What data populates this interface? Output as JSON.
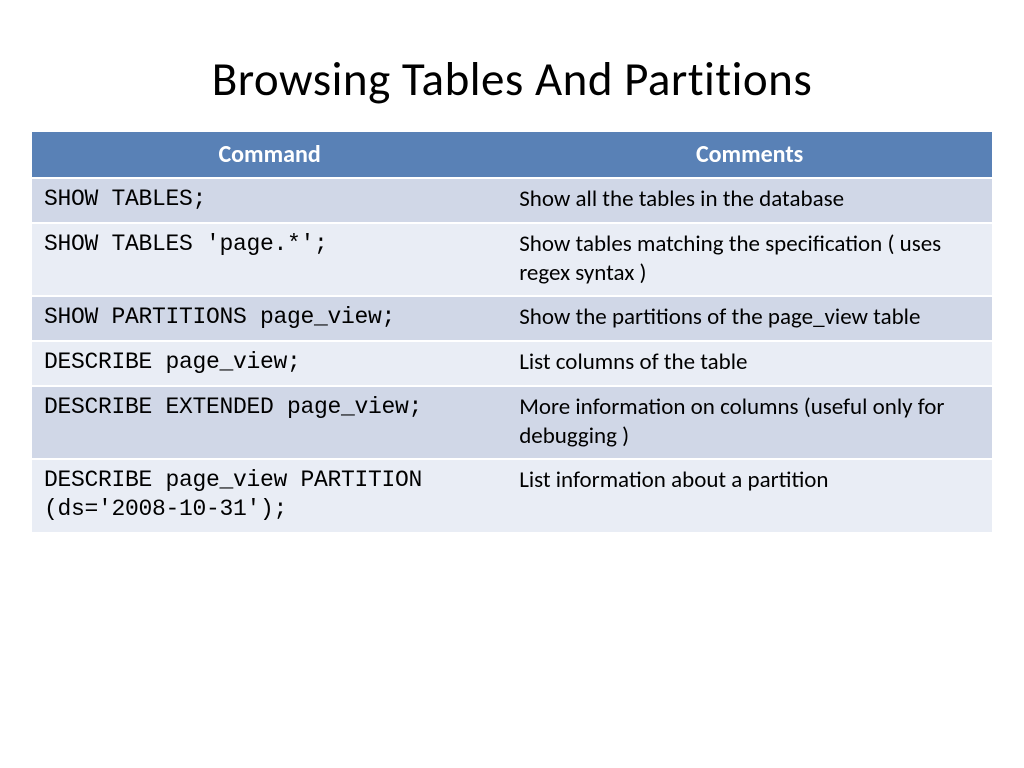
{
  "slide": {
    "title": "Browsing Tables And Partitions",
    "table": {
      "type": "table",
      "header_bg": "#5981b6",
      "header_text_color": "#ffffff",
      "row_colors": [
        "#d0d7e7",
        "#e9edf5"
      ],
      "command_font": "Courier New",
      "comment_font": "Calibri",
      "header_fontsize": 24,
      "cell_fontsize": 23,
      "columns": [
        {
          "key": "command",
          "label": "Command",
          "width_pct": 49.5
        },
        {
          "key": "comments",
          "label": "Comments",
          "width_pct": 50.5
        }
      ],
      "rows": [
        {
          "command": "SHOW TABLES;",
          "comments": "Show all the tables in the database"
        },
        {
          "command": "SHOW TABLES 'page.*';",
          "comments": "Show tables matching the specification  ( uses regex syntax )"
        },
        {
          "command": "SHOW PARTITIONS page_view;",
          "comments": "Show the partitions of the page_view table"
        },
        {
          "command": "DESCRIBE page_view;",
          "comments": "List columns of the table"
        },
        {
          "command": "DESCRIBE EXTENDED page_view;",
          "comments": "More information on columns  (useful only for debugging )"
        },
        {
          "command": "DESCRIBE page_view PARTITION  (ds='2008-10-31');",
          "comments": "List information about a partition"
        }
      ]
    }
  }
}
